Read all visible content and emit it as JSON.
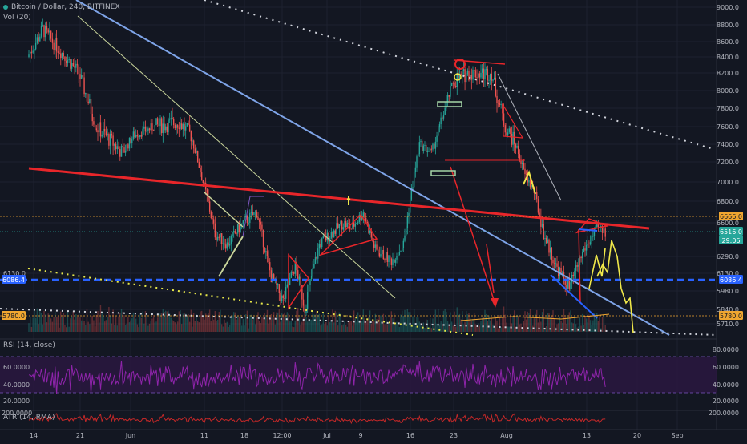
{
  "header": {
    "symbol_title": "Bitcoin / Dollar, 240, BITFINEX",
    "volume_label": "Vol (20)",
    "rsi_label": "RSI (14, close)",
    "atr_label": "ATR (14, RMA)"
  },
  "colors": {
    "background": "#131722",
    "grid": "#1e2230",
    "up_candle": "#26a69a",
    "down_candle": "#ef5350",
    "blue_trendline": "#7ea4e8",
    "red_trendline": "#e8262a",
    "rsi_line": "#8e24aa",
    "rsi_band": "#2a1840",
    "atr_line": "#c62828"
  },
  "price_axis": {
    "ticks": [
      "9000.0",
      "8800.0",
      "8600.0",
      "8400.0",
      "8200.0",
      "8000.0",
      "7800.0",
      "7600.0",
      "7400.0",
      "7200.0",
      "7000.0",
      "6800.0",
      "6600.0",
      "6290.0",
      "6130.0",
      "5980.0",
      "5840.0",
      "5710.0"
    ],
    "labels": [
      {
        "text": "6666.0",
        "bg": "#f0a630",
        "fg": "#131722"
      },
      {
        "text": "6516.0",
        "bg": "#26a69a",
        "fg": "#ffffff"
      },
      {
        "text": "29:06",
        "bg": "#26a69a",
        "fg": "#ffffff"
      },
      {
        "text": "6086.4",
        "bg": "#2962ff",
        "fg": "#ffffff"
      },
      {
        "text": "5780.0",
        "bg": "#f0a630",
        "fg": "#131722"
      }
    ]
  },
  "left_axis": {
    "ticks": [
      "6130.0"
    ],
    "labels": [
      {
        "text": "6086.4",
        "bg": "#2962ff",
        "fg": "#ffffff"
      },
      {
        "text": "5780.0",
        "bg": "#f0a630",
        "fg": "#131722"
      }
    ]
  },
  "rsi_axis": {
    "ticks": [
      "80.0000",
      "60.0000",
      "40.0000",
      "20.0000"
    ]
  },
  "atr_axis": {
    "ticks": [
      "200.0000"
    ]
  },
  "time_axis": {
    "ticks": [
      "14",
      "21",
      "Jun",
      "11",
      "18",
      "12:00",
      "Jul",
      "9",
      "16",
      "23",
      "Aug",
      "13",
      "20",
      "Sep"
    ]
  },
  "chart_data": {
    "type": "candlestick",
    "title": "Bitcoin / Dollar, 240, BITFINEX",
    "y_ticks": [
      9000,
      8800,
      8600,
      8400,
      8200,
      8000,
      7800,
      7600,
      7400,
      7200,
      7000,
      6800,
      6600,
      6290,
      6130,
      5980,
      5840,
      5710
    ],
    "x_ticks": [
      "14",
      "21",
      "Jun",
      "11",
      "18",
      "12:00",
      "Jul",
      "9",
      "16",
      "23",
      "Aug",
      "13",
      "20",
      "Sep"
    ],
    "path": [
      [
        "14",
        8400
      ],
      [
        "16",
        8750
      ],
      [
        "21",
        8200
      ],
      [
        "25",
        7600
      ],
      [
        "28",
        7300
      ],
      [
        "Jun",
        7500
      ],
      [
        "4",
        7600
      ],
      [
        "7",
        7650
      ],
      [
        "8",
        7500
      ],
      [
        "11",
        7000
      ],
      [
        "13",
        6500
      ],
      [
        "15",
        6400
      ],
      [
        "18",
        6600
      ],
      [
        "20",
        6700
      ],
      [
        "22",
        6100
      ],
      [
        "24",
        5900
      ],
      [
        "12:00",
        6200
      ],
      [
        "28",
        5850
      ],
      [
        "29",
        6000
      ],
      [
        "Jul",
        6400
      ],
      [
        "4",
        6600
      ],
      [
        "7",
        6550
      ],
      [
        "9",
        6700
      ],
      [
        "12",
        6350
      ],
      [
        "14",
        6250
      ],
      [
        "16",
        6400
      ],
      [
        "18",
        7400
      ],
      [
        "20",
        7300
      ],
      [
        "23",
        8100
      ],
      [
        "25",
        8200
      ],
      [
        "27",
        8200
      ],
      [
        "29",
        8200
      ],
      [
        "31",
        8000
      ],
      [
        "Aug",
        7600
      ],
      [
        "3",
        7400
      ],
      [
        "5",
        7100
      ],
      [
        "7",
        6900
      ],
      [
        "9",
        6500
      ],
      [
        "11",
        6200
      ],
      [
        "13",
        6000
      ],
      [
        "15",
        6350
      ],
      [
        "17",
        6550
      ],
      [
        "18",
        6516
      ]
    ],
    "series": [
      {
        "name": "Vol (20)",
        "type": "volume"
      },
      {
        "name": "RSI (14, close)",
        "type": "line",
        "ylim": [
          0,
          100
        ],
        "levels": [
          70,
          30
        ]
      },
      {
        "name": "ATR (14, RMA)",
        "type": "line"
      }
    ],
    "price_lines": [
      6666.0,
      6516.0,
      6086.4,
      5780.0
    ],
    "ylim": [
      5640,
      9080
    ],
    "grid": true
  }
}
